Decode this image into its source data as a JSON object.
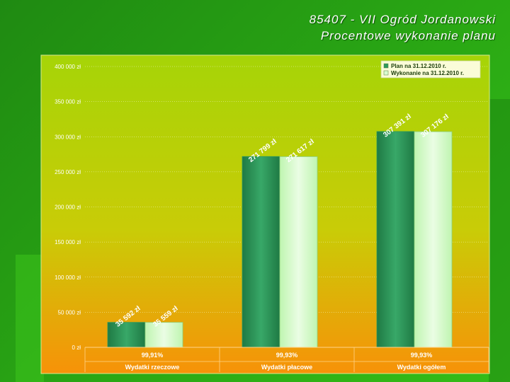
{
  "title": {
    "line1": "85407 - VII Ogród Jordanowski",
    "line2": "Procentowe wykonanie planu"
  },
  "colors": {
    "plan": "#2e9a5c",
    "wykonanie": "#d8fcd0",
    "plot_top": "#a6d407",
    "plot_bottom": "#f79208"
  },
  "chart_data": {
    "type": "bar",
    "categories": [
      "Wydatki rzeczowe",
      "Wydatki płacowe",
      "Wydatki ogółem"
    ],
    "percentages": [
      "99,91%",
      "99,93%",
      "99,93%"
    ],
    "series": [
      {
        "name": "Plan na 31.12.2010 r.",
        "values": [
          35592,
          271799,
          307391
        ],
        "labels": [
          "35 592 zł",
          "271 799 zł",
          "307 391 zł"
        ]
      },
      {
        "name": "Wykonanie na 31.12.2010 r.",
        "values": [
          35559,
          271617,
          307176
        ],
        "labels": [
          "35 559 zł",
          "271 617 zł",
          "307 176 zł"
        ]
      }
    ],
    "ylim": [
      0,
      400000
    ],
    "yticks": [
      0,
      50000,
      100000,
      150000,
      200000,
      250000,
      300000,
      350000,
      400000
    ],
    "ytick_labels": [
      "0 zł",
      "50 000 zł",
      "100 000 zł",
      "150 000 zł",
      "200 000 zł",
      "250 000 zł",
      "300 000 zł",
      "350 000 zł",
      "400 000 zł"
    ],
    "grid": true,
    "legend": "top-right"
  }
}
